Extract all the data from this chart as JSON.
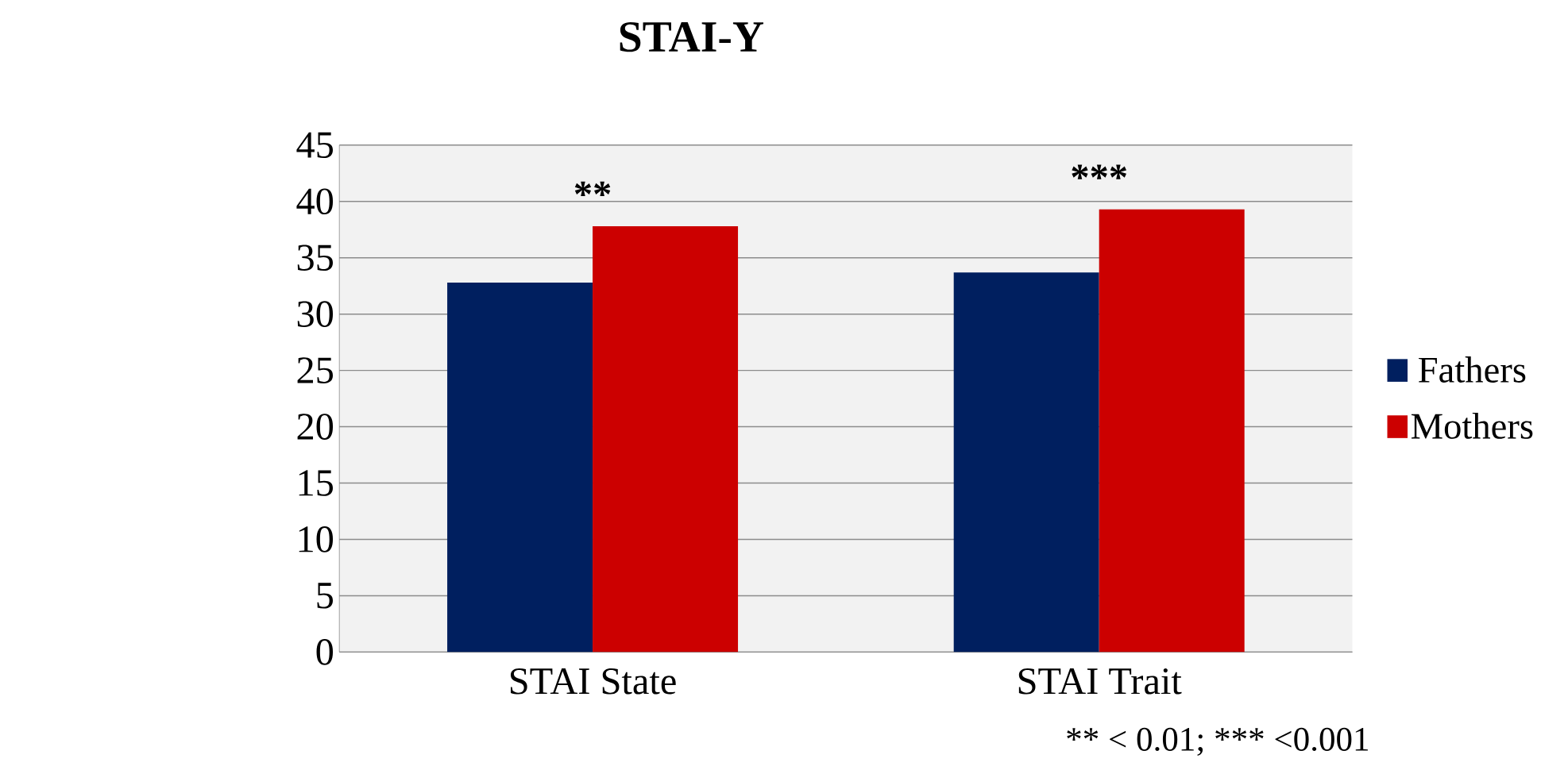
{
  "chart_data": {
    "type": "bar",
    "title": "STAI-Y",
    "categories": [
      "STAI State",
      "STAI Trait"
    ],
    "series": [
      {
        "name": "Fathers",
        "color": "#001f5f",
        "values": [
          32.8,
          33.7
        ]
      },
      {
        "name": "Mothers",
        "color": "#cc0000",
        "values": [
          37.8,
          39.3
        ]
      }
    ],
    "ylim": [
      0,
      45
    ],
    "yticks": [
      0,
      5,
      10,
      15,
      20,
      25,
      30,
      35,
      40,
      45
    ],
    "grid": "y",
    "legend": "right",
    "annotations": [
      "**",
      "***",
      "** < 0.01; *** <0.001"
    ]
  }
}
